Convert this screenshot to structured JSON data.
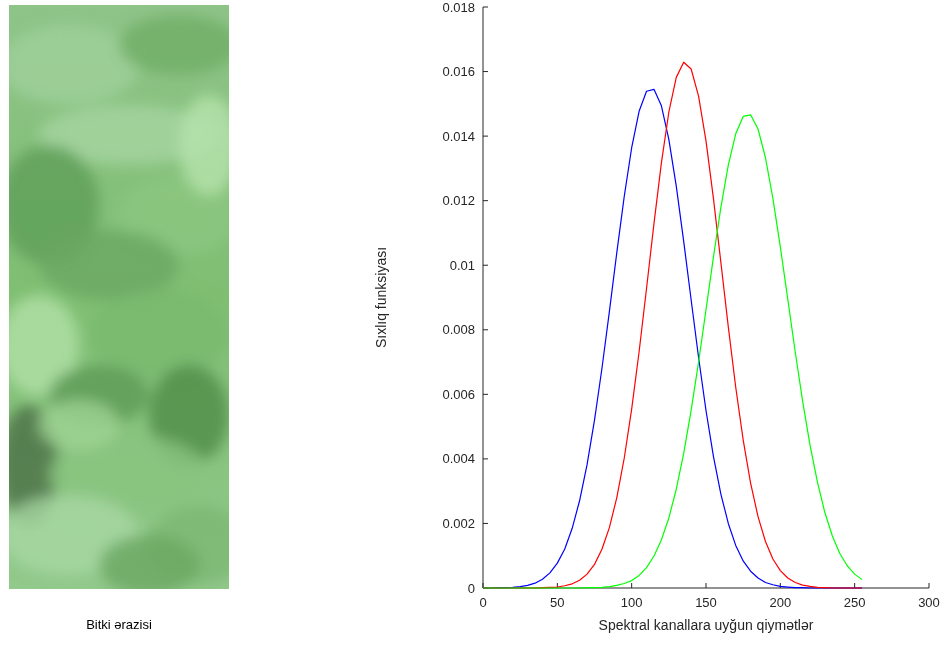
{
  "image": {
    "caption": "Bitki ərazisi"
  },
  "chart_data": {
    "type": "line",
    "x_label": "Spektral kanallara uyğun qiymətlər",
    "y_label": "Sıxlıq funksiyası",
    "x": [
      0,
      5,
      10,
      15,
      20,
      25,
      30,
      35,
      40,
      45,
      50,
      55,
      60,
      65,
      70,
      75,
      80,
      85,
      90,
      95,
      100,
      105,
      110,
      115,
      120,
      125,
      130,
      135,
      140,
      145,
      150,
      155,
      160,
      165,
      170,
      175,
      180,
      185,
      190,
      195,
      200,
      205,
      210,
      215,
      220,
      225,
      230,
      235,
      240,
      245,
      250,
      255
    ],
    "series": [
      {
        "color": "#0000ff",
        "values": [
          0,
          0,
          1e-05,
          1e-05,
          2e-05,
          4e-05,
          8e-05,
          0.00015,
          0.00027,
          0.00047,
          0.00077,
          0.00121,
          0.00185,
          0.00271,
          0.00382,
          0.0052,
          0.0068,
          0.00856,
          0.01039,
          0.01213,
          0.01364,
          0.01477,
          0.01539,
          0.01545,
          0.01494,
          0.0139,
          0.01245,
          0.01074,
          0.00893,
          0.00714,
          0.0055,
          0.00408,
          0.00291,
          0.002,
          0.00132,
          0.00084,
          0.00052,
          0.00031,
          0.00017,
          0.0001,
          5e-05,
          3e-05,
          1e-05,
          1e-05,
          0,
          0,
          0,
          0,
          0,
          0,
          0,
          0
        ]
      },
      {
        "color": "#ff0000",
        "values": [
          0,
          0,
          0,
          0,
          0,
          0,
          0,
          0,
          1e-05,
          2e-05,
          3e-05,
          7e-05,
          0.00013,
          0.00024,
          0.00043,
          0.00073,
          0.0012,
          0.00187,
          0.0028,
          0.00402,
          0.00554,
          0.00732,
          0.00928,
          0.01129,
          0.01317,
          0.01474,
          0.01582,
          0.01629,
          0.01608,
          0.01524,
          0.01385,
          0.01207,
          0.01009,
          0.00809,
          0.00622,
          0.00459,
          0.00325,
          0.00221,
          0.00144,
          0.0009,
          0.00054,
          0.00031,
          0.00017,
          9e-05,
          5e-05,
          2e-05,
          1e-05,
          0,
          0,
          0,
          0,
          0
        ]
      },
      {
        "color": "#00ff00",
        "values": [
          0,
          0,
          0,
          0,
          0,
          0,
          0,
          0,
          0,
          0,
          0,
          0,
          0,
          0,
          1e-05,
          1e-05,
          2e-05,
          4e-05,
          8e-05,
          0.00014,
          0.00023,
          0.00039,
          0.00063,
          0.00099,
          0.00149,
          0.00217,
          0.00306,
          0.00417,
          0.0055,
          0.007,
          0.00862,
          0.01025,
          0.01179,
          0.0131,
          0.01407,
          0.01461,
          0.01466,
          0.01422,
          0.01333,
          0.01207,
          0.01057,
          0.00895,
          0.00732,
          0.00579,
          0.00442,
          0.00327,
          0.00233,
          0.00161,
          0.00107,
          0.00069,
          0.00043,
          0.00026
        ]
      }
    ],
    "xlim": [
      0,
      300
    ],
    "xticks": [
      0,
      50,
      100,
      150,
      200,
      250,
      300
    ],
    "ylim": [
      0,
      0.018
    ],
    "yticks": [
      0,
      0.002,
      0.004,
      0.006,
      0.008,
      0.01,
      0.012,
      0.014,
      0.016,
      0.018
    ],
    "grid": false
  }
}
